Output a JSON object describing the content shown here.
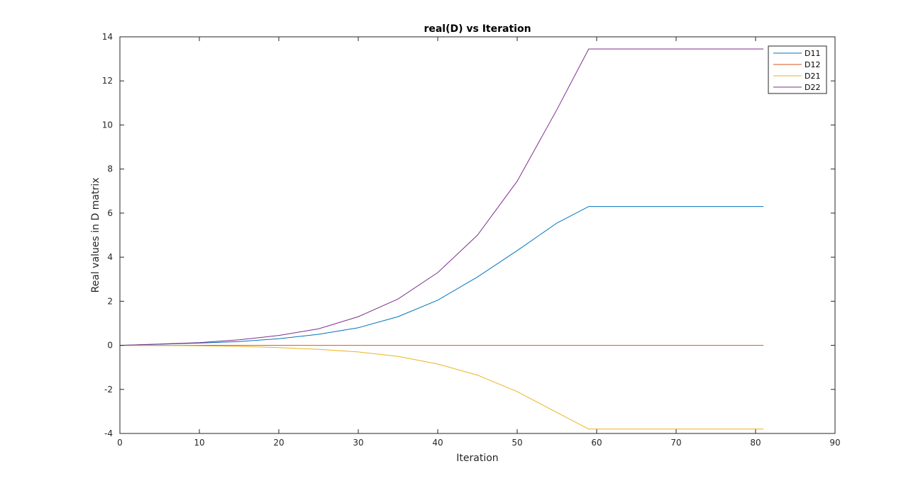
{
  "chart_data": {
    "type": "line",
    "title": "real(D) vs Iteration",
    "xlabel": "Iteration",
    "ylabel": "Real values in D matrix",
    "xlim": [
      0,
      90
    ],
    "ylim": [
      -4,
      14
    ],
    "xticks": [
      0,
      10,
      20,
      30,
      40,
      50,
      60,
      70,
      80,
      90
    ],
    "yticks": [
      -4,
      -2,
      0,
      2,
      4,
      6,
      8,
      10,
      12,
      14
    ],
    "grid": false,
    "legend_position": "top-right",
    "x": [
      0,
      5,
      10,
      15,
      20,
      25,
      30,
      35,
      40,
      45,
      50,
      55,
      59,
      65,
      70,
      75,
      81
    ],
    "series": [
      {
        "name": "D11",
        "color": "#0072BD",
        "values": [
          0.0,
          0.05,
          0.1,
          0.17,
          0.3,
          0.5,
          0.8,
          1.3,
          2.05,
          3.1,
          4.3,
          5.55,
          6.3,
          6.3,
          6.3,
          6.3,
          6.3
        ]
      },
      {
        "name": "D12",
        "color": "#D95319",
        "values": [
          0,
          0,
          0,
          0,
          0,
          0,
          0,
          0,
          0,
          0,
          0,
          0,
          0,
          0,
          0,
          0,
          0
        ]
      },
      {
        "name": "D21",
        "color": "#EDB120",
        "values": [
          0.0,
          -0.01,
          -0.02,
          -0.05,
          -0.1,
          -0.18,
          -0.3,
          -0.5,
          -0.85,
          -1.35,
          -2.1,
          -3.05,
          -3.8,
          -3.8,
          -3.8,
          -3.8,
          -3.8
        ]
      },
      {
        "name": "D22",
        "color": "#7E2F8E",
        "values": [
          0.0,
          0.06,
          0.12,
          0.25,
          0.45,
          0.75,
          1.3,
          2.1,
          3.3,
          5.0,
          7.45,
          10.7,
          13.45,
          13.45,
          13.45,
          13.45,
          13.45
        ]
      }
    ]
  }
}
